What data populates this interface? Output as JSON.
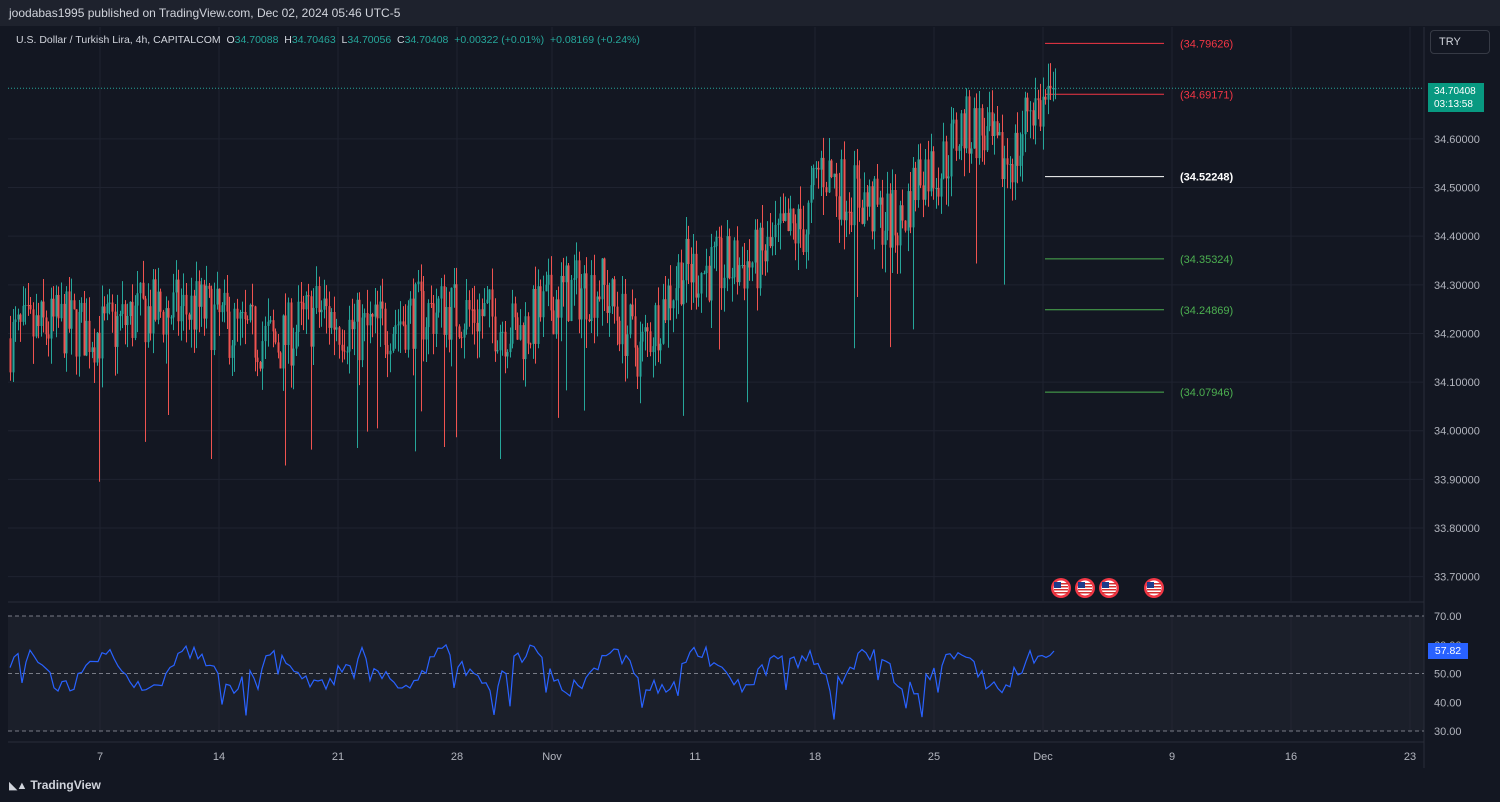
{
  "header": {
    "published": "joodabas1995 published on TradingView.com, Dec 02, 2024 05:46 UTC-5"
  },
  "legend": {
    "symbol": "U.S. Dollar / Turkish Lira, 4h, CAPITALCOM",
    "o_label": "O",
    "o_value": "34.70088",
    "h_label": "H",
    "h_value": "34.70463",
    "l_label": "L",
    "l_value": "34.70056",
    "c_label": "C",
    "c_value": "34.70408",
    "change": "+0.00322 (+0.01%)",
    "change2": "+0.08169 (+0.24%)"
  },
  "symbol_button": "TRY",
  "last_price": {
    "price": "34.70408",
    "countdown": "03:13:58"
  },
  "rsi_value": "57.82",
  "footer": {
    "brand": "TradingView",
    "logo_icon": "tradingview-logo-icon"
  },
  "colors": {
    "background": "#131722",
    "up": "#26a69a",
    "down": "#ef5350",
    "rsi_line": "#2962ff",
    "grid": "#1f2330"
  },
  "chart_data": {
    "type": "candlestick",
    "timeframe": "4h",
    "y_axis": {
      "ticks": [
        33.7,
        33.8,
        33.9,
        34.0,
        34.1,
        34.2,
        34.3,
        34.4,
        34.5,
        34.6
      ],
      "tick_labels": [
        "33.70000",
        "33.80000",
        "33.90000",
        "34.00000",
        "34.10000",
        "34.20000",
        "34.30000",
        "34.40000",
        "34.50000",
        "34.60000"
      ],
      "range": [
        33.65,
        34.83
      ]
    },
    "x_axis": {
      "labels": [
        "7",
        "14",
        "21",
        "28",
        "Nov",
        "11",
        "18",
        "25",
        "Dec",
        "9",
        "16",
        "23"
      ]
    },
    "levels": [
      {
        "label": "(34.79626)",
        "value": 34.79626,
        "color": "#f23645"
      },
      {
        "label": "(34.69171)",
        "value": 34.69171,
        "color": "#f23645"
      },
      {
        "label": "(34.52248)",
        "value": 34.52248,
        "color": "#ffffff"
      },
      {
        "label": "(34.35324)",
        "value": 34.35324,
        "color": "#4caf50"
      },
      {
        "label": "(34.24869)",
        "value": 34.24869,
        "color": "#4caf50"
      },
      {
        "label": "(34.07946)",
        "value": 34.07946,
        "color": "#4caf50"
      }
    ],
    "last_price": 34.70408,
    "rsi": {
      "ticks": [
        30,
        40,
        50,
        60,
        70
      ],
      "tick_labels": [
        "30.00",
        "40.00",
        "50.00",
        "60.00",
        "70.00"
      ],
      "bands": [
        30,
        50,
        70
      ],
      "last": 57.82
    },
    "events": {
      "icon": "us-flag-icon",
      "count": 4
    }
  }
}
